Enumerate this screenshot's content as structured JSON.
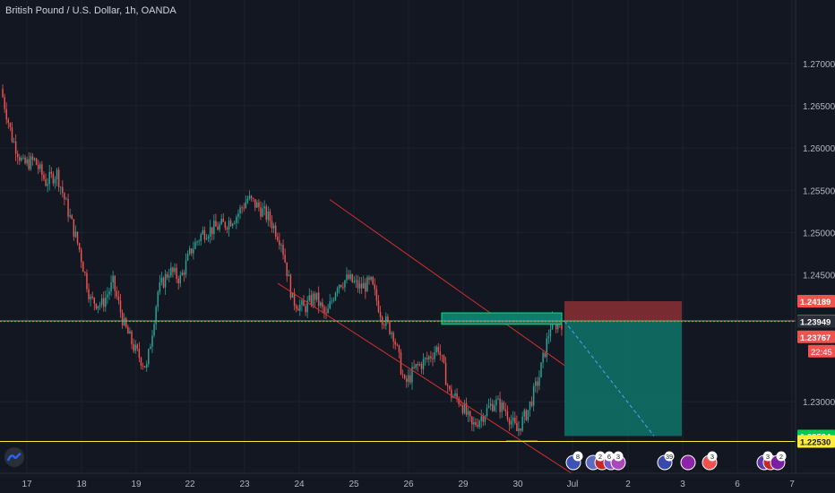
{
  "title": "British Pound / U.S. Dollar, 1h, OANDA",
  "colors": {
    "background": "#131722",
    "up": "#26a69a",
    "down": "#ef5350",
    "channel": "#d32f2f",
    "green_line": "#00e676",
    "yellow_line": "#ffeb3b",
    "stop_zone": "#8b2f32",
    "target_zone": "#0f7a6e"
  },
  "chart_data": {
    "type": "candlestick",
    "symbol": "GBPUSD",
    "ylim": [
      1.2192,
      1.2775
    ],
    "y_ticks": [
      "1.27000",
      "1.26500",
      "1.26000",
      "1.25500",
      "1.25000",
      "1.24500",
      "1.23000"
    ],
    "x_ticks": [
      "17",
      "18",
      "19",
      "22",
      "23",
      "24",
      "25",
      "26",
      "29",
      "30",
      "Jul",
      "2",
      "3",
      "6",
      "7"
    ],
    "candles_hourly_close": [
      1.267,
      1.2612,
      1.258,
      1.2585,
      1.256,
      1.257,
      1.2525,
      1.248,
      1.242,
      1.2415,
      1.244,
      1.239,
      1.236,
      1.234,
      1.243,
      1.2455,
      1.2445,
      1.248,
      1.25,
      1.2505,
      1.251,
      1.252,
      1.254,
      1.253,
      1.2515,
      1.249,
      1.242,
      1.241,
      1.2425,
      1.24,
      1.244,
      1.2445,
      1.2435,
      1.244,
      1.24,
      1.238,
      1.232,
      1.234,
      1.235,
      1.2365,
      1.231,
      1.23,
      1.227,
      1.2285,
      1.23,
      1.229,
      1.2265,
      1.229,
      1.233,
      1.239,
      1.2394
    ],
    "levels": [
      {
        "price": 1.23955,
        "label": "1.23955",
        "style": "green solid"
      },
      {
        "price": 1.23949,
        "label": "1.23949",
        "style": "dotted current price"
      },
      {
        "price": 1.2253,
        "label": "1.22530",
        "style": "yellow solid"
      }
    ],
    "price_labels": [
      {
        "price": 1.24189,
        "label": "1.24189"
      },
      {
        "price": 1.23767,
        "label": "1.23767"
      },
      {
        "price": 1.22594,
        "label": "1.22594"
      }
    ],
    "countdown": "22:45",
    "short_position": {
      "entry": 1.23955,
      "stop": 1.24189,
      "target": 1.22594
    },
    "event_markers": [
      "8",
      "2",
      "6",
      "3",
      "39",
      "3",
      "3",
      "2"
    ],
    "grid": true
  }
}
